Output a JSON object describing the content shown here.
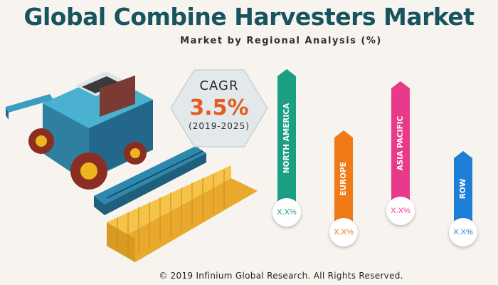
{
  "title": "Global Combine Harvesters Market",
  "subtitle": "Market by Regional Analysis (%)",
  "cagr": {
    "label": "CAGR",
    "value": "3.5%",
    "period": "(2019-2025)"
  },
  "footer": "© 2019 Infinium Global Research. All Rights Reserved.",
  "colors": {
    "title": "#17545e",
    "cagr_value": "#e35d1f",
    "background": "#f7f4ef"
  },
  "chart_data": {
    "type": "bar",
    "categories": [
      "NORTH AMERICA",
      "EUROPE",
      "ASIA PACIFIC",
      "ROW"
    ],
    "value_labels": [
      "X.X%",
      "X.X%",
      "X.X%",
      "X.X%"
    ],
    "relative_heights": [
      100,
      70,
      90,
      55
    ],
    "colors": [
      "#1a9e84",
      "#f07a16",
      "#e8398b",
      "#1f7fd6"
    ]
  }
}
